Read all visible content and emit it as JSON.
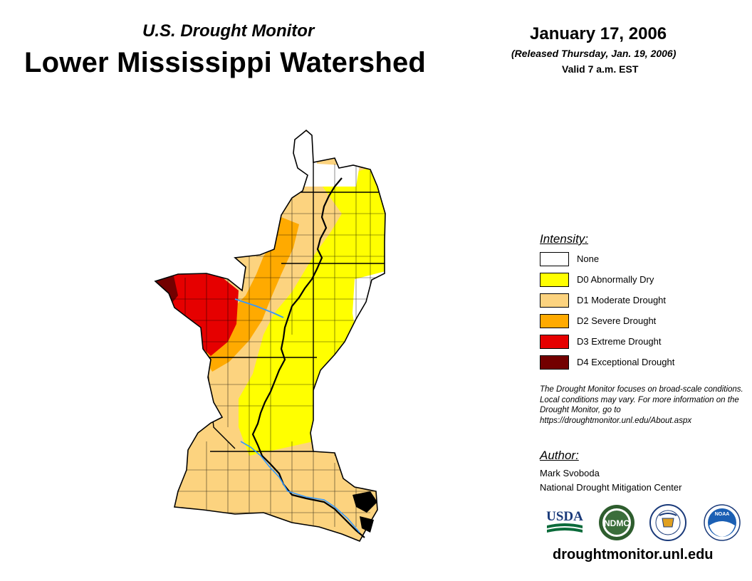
{
  "header": {
    "subtitle": "U.S. Drought Monitor",
    "title": "Lower Mississippi Watershed",
    "date": "January 17, 2006",
    "released": "(Released Thursday, Jan. 19, 2006)",
    "valid": "Valid 7 a.m. EST"
  },
  "legend": {
    "title": "Intensity:",
    "items": [
      {
        "label": "None",
        "color": "#ffffff"
      },
      {
        "label": "D0 Abnormally Dry",
        "color": "#ffff00"
      },
      {
        "label": "D1 Moderate Drought",
        "color": "#fcd37f"
      },
      {
        "label": "D2 Severe Drought",
        "color": "#ffaa00"
      },
      {
        "label": "D3 Extreme Drought",
        "color": "#e60000"
      },
      {
        "label": "D4 Exceptional Drought",
        "color": "#730000"
      }
    ]
  },
  "disclaimer": "The Drought Monitor focuses on broad-scale conditions. Local conditions may vary. For more information on the Drought Monitor, go to https://droughtmonitor.unl.edu/About.aspx",
  "author": {
    "title": "Author:",
    "name": "Mark Svoboda",
    "org": "National Drought Mitigation Center"
  },
  "logos": {
    "usda": "USDA",
    "ndmc": "NDMC",
    "doc": "doc-seal-icon",
    "noaa": "NOAA"
  },
  "website": "droughtmonitor.unl.edu",
  "colors": {
    "river": "#3399ff",
    "border": "#000000"
  }
}
